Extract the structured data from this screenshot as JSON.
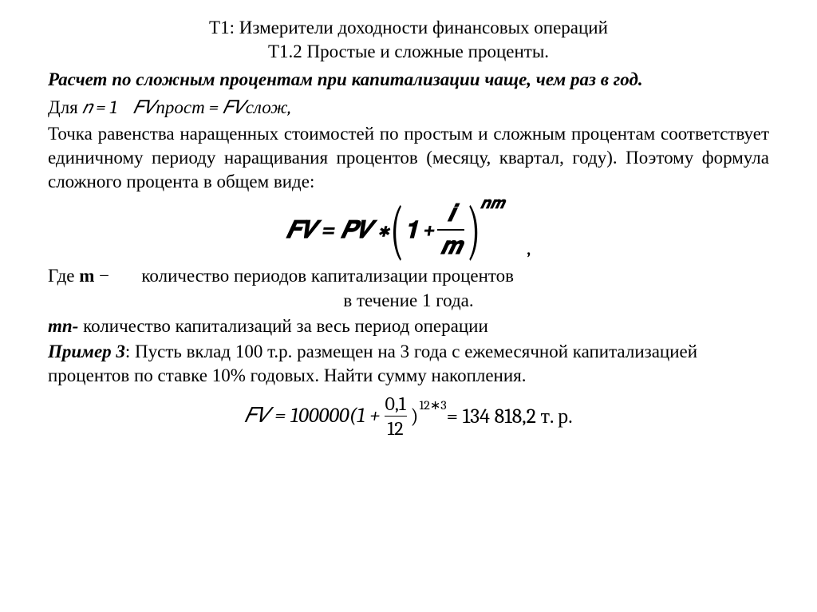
{
  "title1": "Т1: Измерители доходности финансовых операций",
  "title2": "Т1.2 Простые и сложные проценты.",
  "heading": "Расчет по сложным процентам при капитализации чаще, чем раз в год.",
  "eqline": {
    "prefix": "Для ",
    "n_eq": "𝑛 = 1",
    "after": "𝐹𝑉прост = 𝐹𝑉слож,"
  },
  "para1": "Точка равенства наращенных стоимостей по простым и сложным процентам соответствует единичному периоду наращивания процентов (месяцу, квартал, году). Поэтому формула сложного процента в общем виде:",
  "formula": {
    "lhs": "𝑭𝑽 = 𝑷𝑽 ∗",
    "one": "𝟏 +",
    "frac_num": "𝒊",
    "frac_den": "𝒎",
    "exp": "𝒏𝒎",
    "trailing_comma": ","
  },
  "where": {
    "line1_pre": "Где ",
    "m": "m",
    "dash": " −",
    "line1_rest": "количество периодов капитализации процентов",
    "line2": "в течение 1 года."
  },
  "mn_line": {
    "mn": "mn-",
    "rest": " количество капитализаций за весь период операции"
  },
  "example": {
    "label": "Пример 3",
    "text": ": Пусть вклад 100 т.р. размещен на 3 года с ежемесячной капитализацией процентов по ставке 10% годовых. Найти сумму накопления."
  },
  "formula2": {
    "lhs": "𝐹𝑉 = 100000(1 +",
    "frac_num": "0,1",
    "frac_den": "12",
    "rparen": ")",
    "exp": "12∗3",
    "rhs": " = 134 818,2 т. р."
  },
  "style": {
    "text_color": "#000000",
    "bg_color": "#ffffff",
    "body_fontsize": 23,
    "formula_fontsize": 30,
    "formula2_fontsize": 26
  }
}
